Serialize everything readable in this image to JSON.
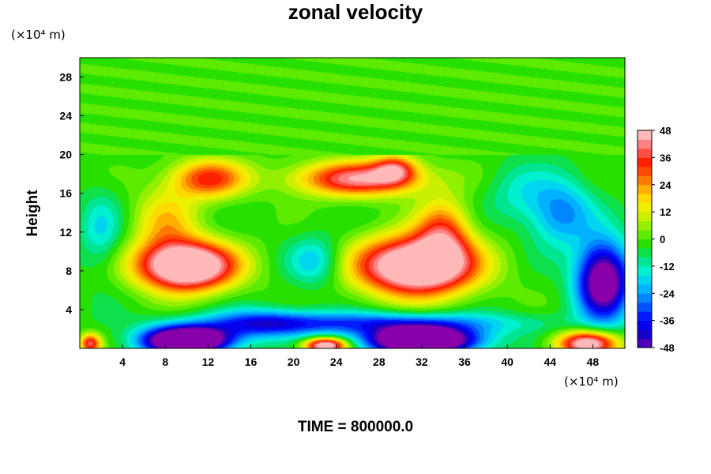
{
  "chart_data": {
    "type": "heatmap",
    "title": "zonal velocity",
    "xlabel": "",
    "ylabel": "Height",
    "x_units": "(×10⁴ m)",
    "y_units": "(×10⁴ m)",
    "xlim": [
      0,
      51
    ],
    "ylim": [
      0,
      30
    ],
    "x_ticks": [
      4,
      8,
      12,
      16,
      20,
      24,
      28,
      32,
      36,
      40,
      44,
      48
    ],
    "y_ticks": [
      4,
      8,
      12,
      16,
      20,
      24,
      28
    ],
    "colorbar": {
      "min": -48,
      "max": 48,
      "ticks": [
        48,
        36,
        24,
        12,
        0,
        -12,
        -24,
        -36,
        -48
      ],
      "stops": [
        {
          "v": -48,
          "c": "#8800aa"
        },
        {
          "v": -40,
          "c": "#1400c8"
        },
        {
          "v": -34,
          "c": "#0000ff"
        },
        {
          "v": -26,
          "c": "#0070ff"
        },
        {
          "v": -18,
          "c": "#00c8ff"
        },
        {
          "v": -12,
          "c": "#00f0d0"
        },
        {
          "v": -6,
          "c": "#00e070"
        },
        {
          "v": 0,
          "c": "#28e000"
        },
        {
          "v": 6,
          "c": "#78f000"
        },
        {
          "v": 12,
          "c": "#c8f000"
        },
        {
          "v": 18,
          "c": "#ffee00"
        },
        {
          "v": 24,
          "c": "#ffb000"
        },
        {
          "v": 30,
          "c": "#ff6000"
        },
        {
          "v": 36,
          "c": "#ff2000"
        },
        {
          "v": 42,
          "c": "#ff6666"
        },
        {
          "v": 48,
          "c": "#ffb8b8"
        }
      ]
    },
    "field_features": [
      {
        "x": 10,
        "y": 8.5,
        "sx": 4.5,
        "sy": 2.5,
        "amp": 72
      },
      {
        "x": 31.5,
        "y": 8.5,
        "sx": 5.5,
        "sy": 3.0,
        "amp": 70
      },
      {
        "x": 34,
        "y": 12,
        "sx": 2.5,
        "sy": 3.5,
        "amp": 30
      },
      {
        "x": 26,
        "y": 17.5,
        "sx": 6.0,
        "sy": 1.8,
        "amp": 44
      },
      {
        "x": 29.5,
        "y": 18.5,
        "sx": 2.0,
        "sy": 1.5,
        "amp": 30
      },
      {
        "x": 12,
        "y": 17.5,
        "sx": 3.5,
        "sy": 2.0,
        "amp": 36
      },
      {
        "x": 8,
        "y": 13,
        "sx": 3.0,
        "sy": 3.5,
        "amp": 20
      },
      {
        "x": 10,
        "y": 0.8,
        "sx": 4.0,
        "sy": 1.4,
        "amp": -85
      },
      {
        "x": 32,
        "y": 0.8,
        "sx": 5.0,
        "sy": 1.4,
        "amp": -85
      },
      {
        "x": 17,
        "y": 2.5,
        "sx": 5.0,
        "sy": 1.6,
        "amp": -22
      },
      {
        "x": 27,
        "y": 2.6,
        "sx": 14.0,
        "sy": 1.2,
        "amp": -28
      },
      {
        "x": 23,
        "y": 0.3,
        "sx": 2.0,
        "sy": 0.8,
        "amp": 60
      },
      {
        "x": 47.5,
        "y": 0.5,
        "sx": 2.8,
        "sy": 1.3,
        "amp": 55
      },
      {
        "x": 1.0,
        "y": 0.5,
        "sx": 1.0,
        "sy": 1.0,
        "amp": 40
      },
      {
        "x": 49,
        "y": 7,
        "sx": 2.5,
        "sy": 4.0,
        "amp": -60
      },
      {
        "x": 45,
        "y": 14,
        "sx": 3.0,
        "sy": 3.5,
        "amp": -24
      },
      {
        "x": 22,
        "y": 9,
        "sx": 2.5,
        "sy": 2.5,
        "amp": -18
      },
      {
        "x": 2,
        "y": 12,
        "sx": 2.0,
        "sy": 4.0,
        "amp": -14
      },
      {
        "x": 41,
        "y": 16,
        "sx": 3.0,
        "sy": 3.0,
        "amp": -10
      }
    ],
    "upper_layer": {
      "from_y": 20,
      "value": 2
    }
  },
  "footer": {
    "time_label": "TIME = 800000.0"
  }
}
